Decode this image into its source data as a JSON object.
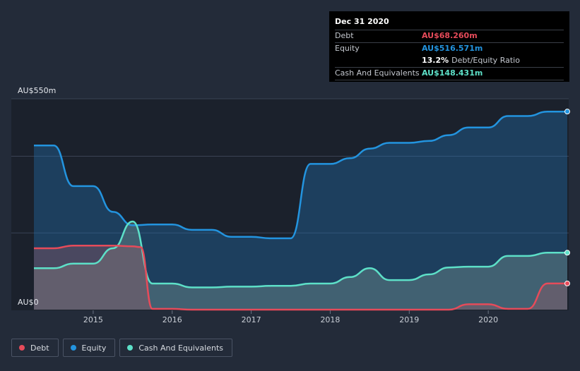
{
  "chart_data": {
    "type": "area",
    "y_top_label": "AU$550m",
    "y_bottom_label": "AU$0",
    "ylim": [
      0,
      550
    ],
    "xlim": [
      2014.25,
      2021.0
    ],
    "x_ticks": [
      2015,
      2016,
      2017,
      2018,
      2019,
      2020
    ],
    "x_tick_labels": [
      "2015",
      "2016",
      "2017",
      "2018",
      "2019",
      "2020"
    ],
    "grid": true,
    "legend_position": "bottom-left",
    "series": [
      {
        "name": "Debt",
        "color": "#e64b5a",
        "points": [
          [
            2014.25,
            160
          ],
          [
            2014.5,
            160
          ],
          [
            2014.75,
            167
          ],
          [
            2015.0,
            167
          ],
          [
            2015.25,
            167
          ],
          [
            2015.5,
            165
          ],
          [
            2015.6,
            163
          ],
          [
            2015.75,
            2
          ],
          [
            2016.0,
            2
          ],
          [
            2016.25,
            0
          ],
          [
            2017.0,
            0
          ],
          [
            2018.0,
            0
          ],
          [
            2019.0,
            0
          ],
          [
            2019.5,
            0
          ],
          [
            2019.75,
            14
          ],
          [
            2020.0,
            14
          ],
          [
            2020.25,
            2
          ],
          [
            2020.5,
            2
          ],
          [
            2020.75,
            68.26
          ],
          [
            2021.0,
            68.26
          ]
        ]
      },
      {
        "name": "Equity",
        "color": "#2394df",
        "points": [
          [
            2014.25,
            428
          ],
          [
            2014.5,
            428
          ],
          [
            2014.75,
            322
          ],
          [
            2015.0,
            322
          ],
          [
            2015.25,
            255
          ],
          [
            2015.5,
            220
          ],
          [
            2015.75,
            222
          ],
          [
            2016.0,
            222
          ],
          [
            2016.25,
            208
          ],
          [
            2016.5,
            208
          ],
          [
            2016.75,
            190
          ],
          [
            2017.0,
            190
          ],
          [
            2017.25,
            186
          ],
          [
            2017.5,
            186
          ],
          [
            2017.75,
            380
          ],
          [
            2018.0,
            380
          ],
          [
            2018.25,
            395
          ],
          [
            2018.5,
            420
          ],
          [
            2018.75,
            435
          ],
          [
            2019.0,
            435
          ],
          [
            2019.25,
            440
          ],
          [
            2019.5,
            455
          ],
          [
            2019.75,
            475
          ],
          [
            2020.0,
            475
          ],
          [
            2020.25,
            505
          ],
          [
            2020.5,
            505
          ],
          [
            2020.75,
            516.571
          ],
          [
            2021.0,
            516.571
          ]
        ]
      },
      {
        "name": "Cash And Equivalents",
        "color": "#5de0c8",
        "points": [
          [
            2014.25,
            108
          ],
          [
            2014.5,
            108
          ],
          [
            2014.75,
            120
          ],
          [
            2015.0,
            120
          ],
          [
            2015.25,
            160
          ],
          [
            2015.5,
            230
          ],
          [
            2015.75,
            68
          ],
          [
            2016.0,
            68
          ],
          [
            2016.25,
            58
          ],
          [
            2016.5,
            58
          ],
          [
            2016.75,
            60
          ],
          [
            2017.0,
            60
          ],
          [
            2017.25,
            62
          ],
          [
            2017.5,
            62
          ],
          [
            2017.75,
            68
          ],
          [
            2018.0,
            68
          ],
          [
            2018.25,
            85
          ],
          [
            2018.5,
            108
          ],
          [
            2018.75,
            77
          ],
          [
            2019.0,
            77
          ],
          [
            2019.25,
            92
          ],
          [
            2019.5,
            110
          ],
          [
            2019.75,
            112
          ],
          [
            2020.0,
            112
          ],
          [
            2020.25,
            140
          ],
          [
            2020.5,
            140
          ],
          [
            2020.75,
            148.431
          ],
          [
            2021.0,
            148.431
          ]
        ]
      }
    ]
  },
  "tooltip": {
    "date": "Dec 31 2020",
    "debt_label": "Debt",
    "debt_value": "AU$68.260m",
    "equity_label": "Equity",
    "equity_value": "AU$516.571m",
    "ratio_value": "13.2%",
    "ratio_label": "Debt/Equity Ratio",
    "cash_label": "Cash And Equivalents",
    "cash_value": "AU$148.431m",
    "debt_color": "#e64b5a",
    "equity_color": "#2394df",
    "cash_color": "#5de0c8"
  },
  "legend": {
    "debt": "Debt",
    "equity": "Equity",
    "cash": "Cash And Equivalents"
  }
}
